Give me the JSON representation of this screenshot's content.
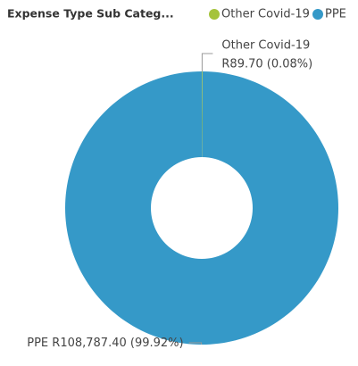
{
  "chart_data": {
    "type": "donut",
    "legend_title": "Expense Type Sub Categ...",
    "categories": [
      "Other Covid-19",
      "PPE"
    ],
    "values": [
      89.7,
      108787.4
    ],
    "value_labels": [
      "R89.70 (0.08%)",
      "R108,787.40 (99.92%)"
    ],
    "colors": [
      "#a5c33b",
      "#3599c8"
    ]
  }
}
